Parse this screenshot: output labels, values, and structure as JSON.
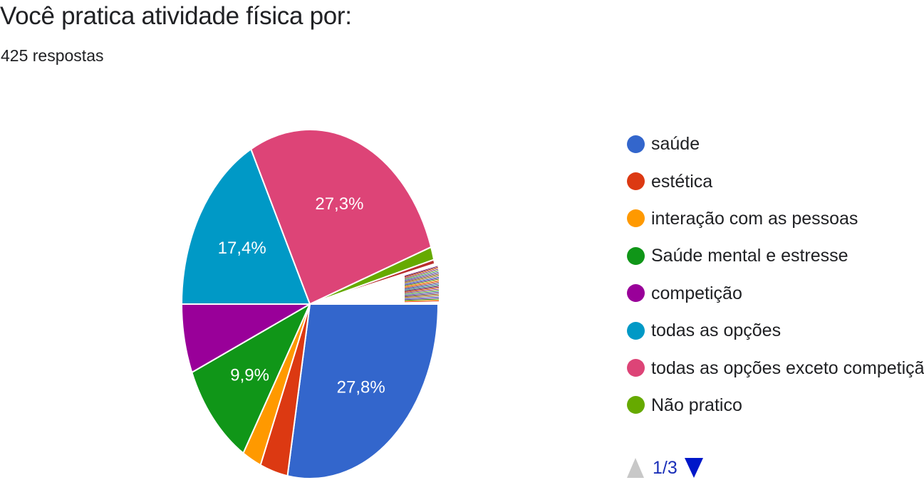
{
  "chart_data": {
    "type": "pie",
    "title": "Você pratica atividade física por:",
    "subtitle": "425 respostas",
    "slices": [
      {
        "label": "saúde",
        "value": 27.8,
        "color": "#3366cc",
        "display": "27,8%"
      },
      {
        "label": "estética",
        "value": 3.5,
        "color": "#dc3912",
        "display": ""
      },
      {
        "label": "interação com as pessoas",
        "value": 2.4,
        "color": "#ff9900",
        "display": ""
      },
      {
        "label": "Saúde mental e estresse",
        "value": 9.9,
        "color": "#109618",
        "display": "9,9%"
      },
      {
        "label": "competição",
        "value": 6.4,
        "color": "#990099",
        "display": ""
      },
      {
        "label": "todas as opções",
        "value": 17.4,
        "color": "#0099c6",
        "display": "17,4%"
      },
      {
        "label": "todas as opções exceto competição",
        "value": 27.3,
        "color": "#dd4477",
        "display": "27,3%"
      },
      {
        "label": "Não pratico",
        "value": 1.2,
        "color": "#66aa00",
        "display": ""
      },
      {
        "label": "",
        "value": 0.4,
        "color": "#b82e2e",
        "display": ""
      },
      {
        "label": "",
        "value": 3.7,
        "color": "#ffffff",
        "display": ""
      }
    ],
    "legend": {
      "items": [
        {
          "label": "saúde",
          "color": "#3366cc"
        },
        {
          "label": "estética",
          "color": "#dc3912"
        },
        {
          "label": "interação com as pessoas",
          "color": "#ff9900"
        },
        {
          "label": "Saúde mental e estresse",
          "color": "#109618"
        },
        {
          "label": "competição",
          "color": "#990099"
        },
        {
          "label": "todas as opções",
          "color": "#0099c6"
        },
        {
          "label": "todas as opções exceto competição",
          "color": "#dd4477"
        },
        {
          "label": "Não pratico",
          "color": "#66aa00"
        }
      ],
      "placement": "right",
      "page": "1/3"
    }
  }
}
